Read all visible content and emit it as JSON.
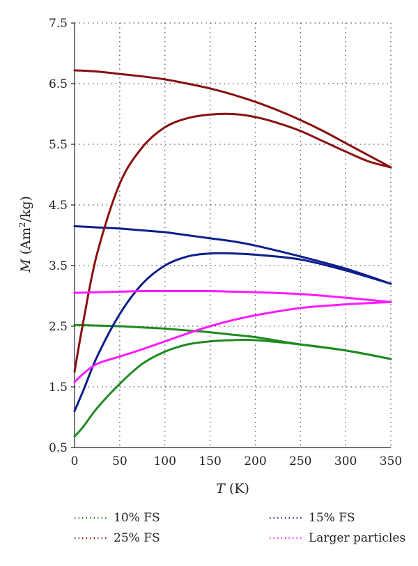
{
  "chart_data": {
    "type": "line",
    "xlabel_italic": "T",
    "xlabel_rest": " (K)",
    "ylabel_italic": "M",
    "ylabel_rest_a": " (Am",
    "ylabel_sup": "2",
    "ylabel_rest_b": "/kg)",
    "xlim": [
      0,
      350
    ],
    "ylim": [
      0.5,
      7.5
    ],
    "xticks": [
      0,
      50,
      100,
      150,
      200,
      250,
      300,
      350
    ],
    "yticks": [
      0.5,
      1.5,
      2.5,
      3.5,
      4.5,
      5.5,
      6.5,
      7.5
    ],
    "xtick_labels": [
      "0",
      "50",
      "100",
      "150",
      "200",
      "250",
      "300",
      "350"
    ],
    "ytick_labels": [
      "0.5",
      "1.5",
      "2.5",
      "3.5",
      "4.5",
      "5.5",
      "6.5",
      "7.5"
    ],
    "grid": true,
    "legend_position": "bottom",
    "series": [
      {
        "name": "10% FS",
        "color": "#1f8a1f",
        "curves": [
          {
            "x": [
              0,
              25,
              50,
              75,
              100,
              125,
              150,
              175,
              200,
              250,
              300,
              350
            ],
            "y": [
              2.52,
              2.51,
              2.5,
              2.48,
              2.46,
              2.43,
              2.4,
              2.36,
              2.32,
              2.2,
              2.1,
              1.96
            ]
          },
          {
            "x": [
              0,
              10,
              25,
              50,
              75,
              100,
              125,
              150,
              175,
              200,
              250,
              300,
              350
            ],
            "y": [
              0.68,
              0.85,
              1.15,
              1.55,
              1.88,
              2.08,
              2.2,
              2.25,
              2.27,
              2.27,
              2.2,
              2.1,
              1.96
            ]
          }
        ]
      },
      {
        "name": "15% FS",
        "color": "#0d1f8c",
        "curves": [
          {
            "x": [
              0,
              25,
              50,
              75,
              100,
              125,
              150,
              175,
              200,
              250,
              300,
              350
            ],
            "y": [
              4.15,
              4.13,
              4.11,
              4.08,
              4.05,
              4.0,
              3.95,
              3.9,
              3.83,
              3.65,
              3.45,
              3.2
            ]
          },
          {
            "x": [
              0,
              10,
              25,
              50,
              75,
              100,
              125,
              150,
              175,
              200,
              250,
              300,
              350
            ],
            "y": [
              1.1,
              1.45,
              2.0,
              2.7,
              3.2,
              3.5,
              3.65,
              3.7,
              3.7,
              3.68,
              3.6,
              3.42,
              3.2
            ]
          }
        ]
      },
      {
        "name": "25% FS",
        "color": "#8a1010",
        "curves": [
          {
            "x": [
              0,
              25,
              50,
              75,
              100,
              125,
              150,
              175,
              200,
              225,
              250,
              275,
              300,
              325,
              350
            ],
            "y": [
              6.72,
              6.7,
              6.66,
              6.62,
              6.57,
              6.5,
              6.42,
              6.32,
              6.2,
              6.06,
              5.9,
              5.72,
              5.52,
              5.32,
              5.12
            ]
          },
          {
            "x": [
              0,
              10,
              25,
              50,
              75,
              100,
              125,
              150,
              175,
              200,
              225,
              250,
              275,
              300,
              325,
              350
            ],
            "y": [
              1.75,
              2.6,
              3.7,
              4.85,
              5.45,
              5.78,
              5.93,
              5.99,
              6.0,
              5.95,
              5.85,
              5.72,
              5.55,
              5.38,
              5.22,
              5.12
            ]
          }
        ]
      },
      {
        "name": "Larger particles",
        "color": "#ff1aff",
        "curves": [
          {
            "x": [
              0,
              25,
              50,
              75,
              100,
              125,
              150,
              175,
              200,
              250,
              300,
              350
            ],
            "y": [
              3.05,
              3.06,
              3.07,
              3.08,
              3.08,
              3.08,
              3.08,
              3.07,
              3.06,
              3.03,
              2.97,
              2.9
            ]
          },
          {
            "x": [
              0,
              10,
              25,
              50,
              75,
              100,
              125,
              150,
              175,
              200,
              250,
              300,
              350
            ],
            "y": [
              1.58,
              1.72,
              1.88,
              2.0,
              2.12,
              2.25,
              2.38,
              2.5,
              2.6,
              2.68,
              2.8,
              2.86,
              2.9
            ]
          }
        ]
      }
    ]
  }
}
